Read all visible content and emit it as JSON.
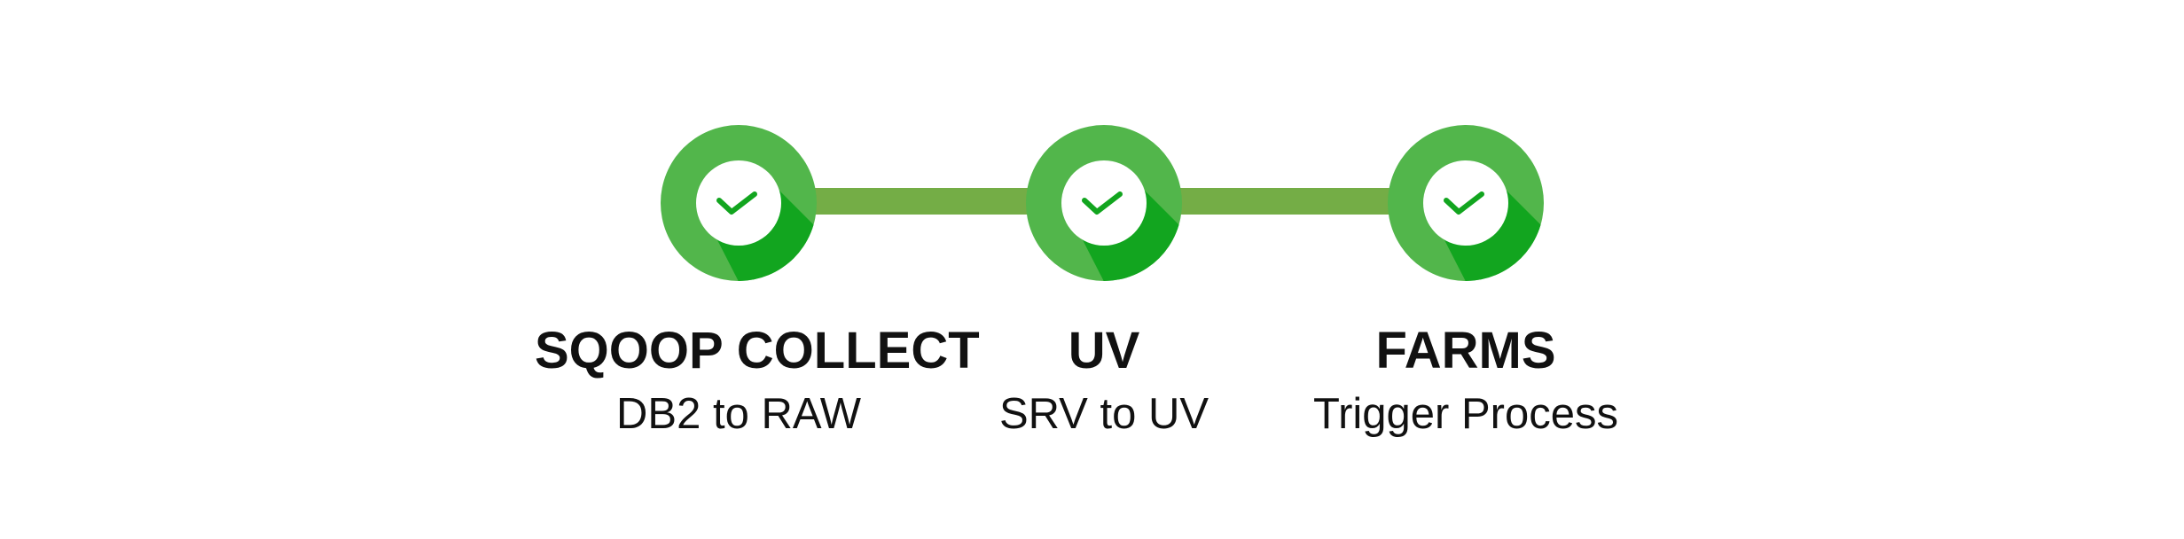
{
  "colors": {
    "badge_light": "#52b64b",
    "badge_shadow": "#12a51f",
    "inner_circle": "#ffffff",
    "check": "#12a51f",
    "connector": "#74ad46",
    "text": "#111111"
  },
  "steps": [
    {
      "title": "SQOOP COLLECT",
      "subtitle": "DB2 to RAW",
      "status": "complete",
      "icon": "checkmark-icon"
    },
    {
      "title": "UV",
      "subtitle": "SRV to UV",
      "status": "complete",
      "icon": "checkmark-icon"
    },
    {
      "title": "FARMS",
      "subtitle": "Trigger Process",
      "status": "complete",
      "icon": "checkmark-icon"
    }
  ]
}
